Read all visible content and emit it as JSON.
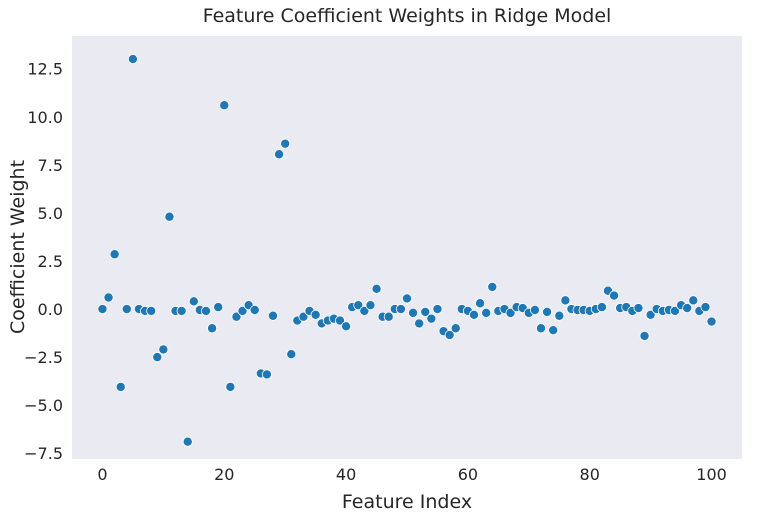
{
  "chart_data": {
    "type": "scatter",
    "title": "Feature Coefficient Weights in Ridge Model",
    "xlabel": "Feature Index",
    "ylabel": "Coefficient Weight",
    "xlim": [
      -5,
      105
    ],
    "ylim": [
      -7.8,
      14.2
    ],
    "xticks": [
      0,
      20,
      40,
      60,
      80,
      100
    ],
    "yticks": [
      -7.5,
      -5.0,
      -2.5,
      0.0,
      2.5,
      5.0,
      7.5,
      10.0,
      12.5
    ],
    "xtick_labels": [
      "0",
      "20",
      "40",
      "60",
      "80",
      "100"
    ],
    "ytick_labels": [
      "−7.5",
      "−5.0",
      "−2.5",
      "0.0",
      "2.5",
      "5.0",
      "7.5",
      "10.0",
      "12.5"
    ],
    "grid": false,
    "colors": {
      "background": "#eaeaf2",
      "point": "#1f77b4"
    },
    "x": [
      0,
      1,
      2,
      3,
      4,
      5,
      6,
      7,
      8,
      9,
      10,
      11,
      12,
      13,
      14,
      15,
      16,
      17,
      18,
      19,
      20,
      21,
      22,
      23,
      24,
      25,
      26,
      27,
      28,
      29,
      30,
      31,
      32,
      33,
      34,
      35,
      36,
      37,
      38,
      39,
      40,
      41,
      42,
      43,
      44,
      45,
      46,
      47,
      48,
      49,
      50,
      51,
      52,
      53,
      54,
      55,
      56,
      57,
      58,
      59,
      60,
      61,
      62,
      63,
      64,
      65,
      66,
      67,
      68,
      69,
      70,
      71,
      72,
      73,
      74,
      75,
      76,
      77,
      78,
      79,
      80,
      81,
      82,
      83,
      84,
      85,
      86,
      87,
      88,
      89,
      90,
      91,
      92,
      93,
      94,
      95,
      96,
      97,
      98,
      99,
      100
    ],
    "y": [
      0.0,
      0.6,
      2.85,
      -4.05,
      0.0,
      13.0,
      0.0,
      -0.1,
      -0.1,
      -2.5,
      -2.1,
      4.8,
      -0.1,
      -0.1,
      -6.9,
      0.4,
      -0.05,
      -0.1,
      -1.0,
      0.1,
      10.6,
      -4.05,
      -0.4,
      -0.1,
      0.2,
      -0.05,
      -3.35,
      -3.4,
      -0.35,
      8.05,
      8.6,
      -2.35,
      -0.6,
      -0.4,
      -0.1,
      -0.3,
      -0.75,
      -0.6,
      -0.5,
      -0.6,
      -0.9,
      0.1,
      0.2,
      -0.1,
      0.2,
      1.05,
      -0.4,
      -0.4,
      0.0,
      0.0,
      0.55,
      -0.2,
      -0.75,
      -0.15,
      -0.5,
      0.0,
      -1.15,
      -1.35,
      -1.0,
      0.0,
      -0.1,
      -0.3,
      0.3,
      -0.2,
      1.15,
      -0.1,
      0.0,
      -0.2,
      0.1,
      0.05,
      -0.2,
      -0.05,
      -1.0,
      -0.15,
      -1.1,
      -0.35,
      0.45,
      0.0,
      -0.05,
      -0.05,
      -0.1,
      0.0,
      0.1,
      0.95,
      0.7,
      0.05,
      0.1,
      -0.1,
      0.05,
      -1.4,
      -0.3,
      0.0,
      -0.1,
      -0.05,
      -0.1,
      0.2,
      0.05,
      0.45,
      -0.1,
      0.1,
      -0.65
    ]
  }
}
